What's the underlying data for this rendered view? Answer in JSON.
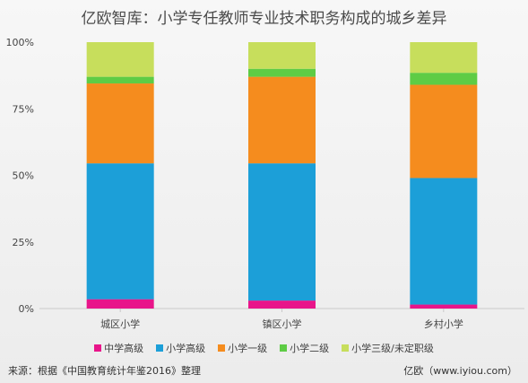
{
  "chart_data": {
    "type": "bar",
    "stacked": true,
    "title": "亿欧智库：小学专任教师专业技术职务构成的城乡差异",
    "categories": [
      "城区小学",
      "镇区小学",
      "乡村小学"
    ],
    "y_ticks": [
      "0%",
      "25%",
      "50%",
      "75%",
      "100%"
    ],
    "ylim": [
      0,
      100
    ],
    "series": [
      {
        "name": "中学高级",
        "color": "#e8158a",
        "values": [
          3.5,
          3.0,
          1.5
        ]
      },
      {
        "name": "小学高级",
        "color": "#1c9fd8",
        "values": [
          51.0,
          51.5,
          47.5
        ]
      },
      {
        "name": "小学一级",
        "color": "#f58c1e",
        "values": [
          30.0,
          32.5,
          35.0
        ]
      },
      {
        "name": "小学二级",
        "color": "#5ecc45",
        "values": [
          2.5,
          3.0,
          4.5
        ]
      },
      {
        "name": "小学三级/未定职级",
        "color": "#c7de5c",
        "values": [
          13.0,
          10.0,
          11.5
        ]
      }
    ],
    "legend_position": "bottom",
    "grid": false
  },
  "footer": {
    "source": "来源：根据《中国教育统计年鉴2016》整理",
    "brand": "亿欧（www.iyiou.com）"
  }
}
